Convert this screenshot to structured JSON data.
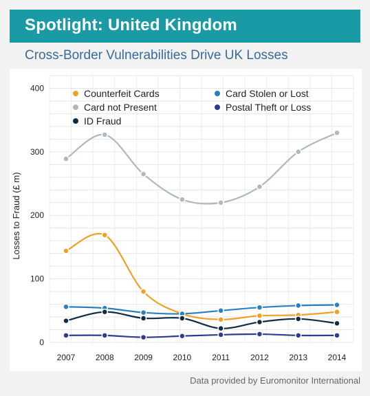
{
  "header": {
    "title": "Spotlight: United Kingdom",
    "subtitle": "Cross-Border Vulnerabilities Drive UK Losses"
  },
  "footer": {
    "source": "Data provided by Euromonitor International"
  },
  "chart_data": {
    "type": "line",
    "x": [
      2007,
      2008,
      2009,
      2010,
      2011,
      2012,
      2013,
      2014
    ],
    "ylabel": "Losses to Fraud (£ m)",
    "xlabel": "",
    "ylim": [
      0,
      420
    ],
    "yticks": [
      0,
      100,
      200,
      300,
      400
    ],
    "grid": true,
    "legend_position": "top",
    "series": [
      {
        "name": "Counterfeit Cards",
        "color": "#f0a022",
        "values": [
          144,
          169,
          80,
          45,
          36,
          42,
          43,
          48
        ]
      },
      {
        "name": "Card Stolen or Lost",
        "color": "#2a7fbf",
        "values": [
          56,
          54,
          47,
          45,
          50,
          55,
          58,
          59
        ]
      },
      {
        "name": "Card not Present",
        "color": "#adb8c0",
        "values": [
          289,
          327,
          265,
          225,
          220,
          245,
          300,
          330
        ]
      },
      {
        "name": "Postal Theft or Loss",
        "color": "#2f3b8f",
        "values": [
          11,
          11,
          8,
          10,
          12,
          13,
          11,
          11
        ]
      },
      {
        "name": "ID Fraud",
        "color": "#0f2c45",
        "values": [
          34,
          48,
          38,
          38,
          22,
          32,
          37,
          30
        ]
      }
    ]
  }
}
